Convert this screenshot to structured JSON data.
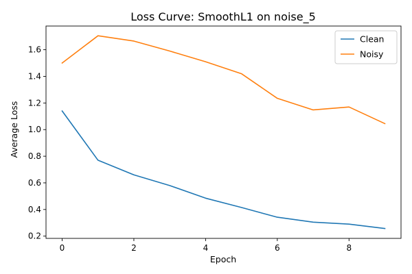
{
  "chart_data": {
    "type": "line",
    "title": "Loss Curve: SmoothL1 on noise_5",
    "xlabel": "Epoch",
    "ylabel": "Average Loss",
    "xlim": [
      -0.45,
      9.45
    ],
    "ylim": [
      0.183,
      1.778
    ],
    "x_ticks": [
      "0",
      "2",
      "4",
      "6",
      "8"
    ],
    "y_ticks": [
      "0.2",
      "0.4",
      "0.6",
      "0.8",
      "1.0",
      "1.2",
      "1.4",
      "1.6"
    ],
    "grid": false,
    "legend_position": "upper right",
    "x": [
      0,
      1,
      2,
      3,
      4,
      5,
      6,
      7,
      8,
      9
    ],
    "series": [
      {
        "name": "Clean",
        "color": "#1f77b4",
        "values": [
          1.14,
          0.77,
          0.66,
          0.58,
          0.485,
          0.415,
          0.342,
          0.305,
          0.29,
          0.257
        ]
      },
      {
        "name": "Noisy",
        "color": "#ff7f0e",
        "values": [
          1.5,
          1.705,
          1.665,
          1.59,
          1.51,
          1.42,
          1.235,
          1.148,
          1.17,
          1.045
        ]
      }
    ]
  }
}
